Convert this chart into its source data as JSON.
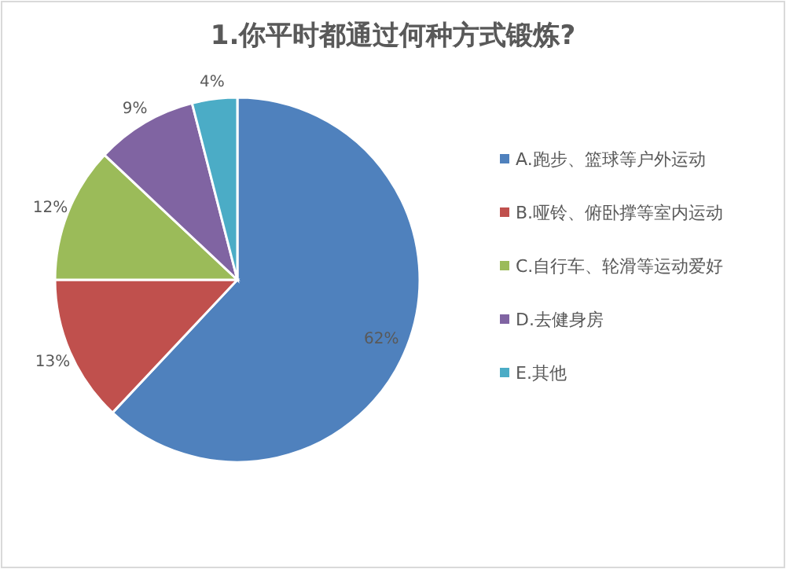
{
  "chart_data": {
    "type": "pie",
    "title": "1.你平时都通过何种方式锻炼?",
    "categories": [
      "A.跑步、篮球等户外运动",
      "B.哑铃、俯卧撑等室内运动",
      "C.自行车、轮滑等运动爱好",
      "D.去健身房",
      "E.其他"
    ],
    "values": [
      62,
      13,
      12,
      9,
      4
    ],
    "colors": [
      "#4f81bd",
      "#c0504d",
      "#9bbb59",
      "#8064a2",
      "#4bacc6"
    ],
    "value_labels": [
      "62%",
      "13%",
      "12%",
      "9%",
      "4%"
    ],
    "legend": "right"
  }
}
